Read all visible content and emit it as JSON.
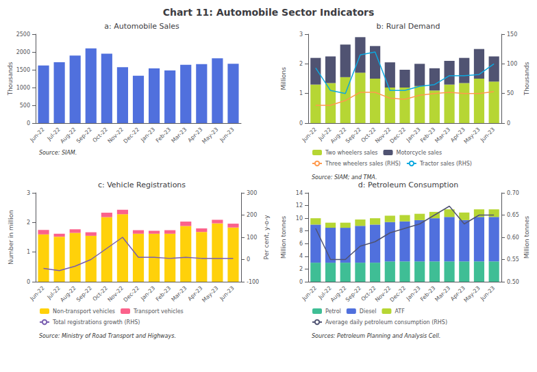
{
  "title": "Chart 11: Automobile Sector Indicators",
  "chart_data": [
    {
      "type": "bar",
      "title": "a: Automobile Sales",
      "categories": [
        "Jun-22",
        "Jul-22",
        "Aug-22",
        "Sep-22",
        "Oct-22",
        "Nov-22",
        "Dec-22",
        "Jan-23",
        "Feb-23",
        "Mar-23",
        "Apr-23",
        "May-23",
        "Jun-23"
      ],
      "ylabel": "Thousands",
      "values": [
        1620,
        1710,
        1900,
        2100,
        1950,
        1570,
        1330,
        1540,
        1480,
        1640,
        1660,
        1820,
        1670
      ],
      "ylim": [
        0,
        2500
      ],
      "yticks": [
        0,
        500,
        1000,
        1500,
        2000,
        2500
      ],
      "grid": false,
      "annotations": [
        "Source: SIAM."
      ]
    },
    {
      "type": "bar",
      "title": "b: Rural Demand",
      "categories": [
        "Jun-22",
        "Jul-22",
        "Aug-22",
        "Sep-22",
        "Oct-22",
        "Nov-22",
        "Dec-22",
        "Jan-23",
        "Feb-23",
        "Mar-23",
        "Apr-23",
        "May-23",
        "Jun-23"
      ],
      "ylabel": "Millions",
      "y2label": "Thousands",
      "stacked": true,
      "series": [
        {
          "name": "Two wheelers sales",
          "values": [
            1.3,
            1.35,
            1.55,
            1.7,
            1.5,
            1.2,
            1.2,
            1.25,
            1.1,
            1.3,
            1.35,
            1.5,
            1.4
          ]
        },
        {
          "name": "Motorcycle sales",
          "values": [
            0.9,
            0.9,
            1.1,
            1.2,
            1.1,
            0.85,
            0.6,
            0.75,
            0.75,
            0.8,
            0.85,
            1.0,
            0.85
          ]
        },
        {
          "name": "Three wheelers sales (RHS)",
          "type": "line",
          "axis": "y2",
          "values": [
            30,
            30,
            38,
            52,
            52,
            42,
            40,
            47,
            50,
            52,
            50,
            50,
            53
          ]
        },
        {
          "name": "Tractor sales (RHS)",
          "type": "line",
          "axis": "y2",
          "values": [
            93,
            55,
            50,
            115,
            120,
            55,
            55,
            62,
            65,
            80,
            80,
            82,
            100
          ]
        }
      ],
      "ylim": [
        0.0,
        3.0
      ],
      "yticks": [
        0,
        1,
        2,
        3
      ],
      "y2lim": [
        0,
        150
      ],
      "y2ticks": [
        0,
        50,
        100,
        150
      ],
      "grid": false,
      "legend": "bottom",
      "annotations": [
        "Source: SIAM; and TMA."
      ]
    },
    {
      "type": "bar",
      "title": "c: Vehicle Registrations",
      "categories": [
        "Jun-22",
        "Jul-22",
        "Aug-22",
        "Sep-22",
        "Oct-22",
        "Nov-22",
        "Dec-22",
        "Jan-23",
        "Feb-23",
        "Mar-23",
        "Apr-23",
        "May-23",
        "Jun-23"
      ],
      "ylabel": "Number in million",
      "y2label": "Per cent, y-o-y",
      "stacked": true,
      "series": [
        {
          "name": "Non-transport vehicles",
          "values": [
            1.6,
            1.52,
            1.65,
            1.55,
            2.18,
            2.28,
            1.62,
            1.62,
            1.62,
            1.88,
            1.68,
            1.97,
            1.83
          ]
        },
        {
          "name": "Transport vehicles",
          "values": [
            0.15,
            0.1,
            0.12,
            0.12,
            0.15,
            0.15,
            0.12,
            0.1,
            0.12,
            0.15,
            0.12,
            0.12,
            0.13
          ]
        },
        {
          "name": "Total registrations growth (RHS)",
          "type": "line",
          "axis": "y2",
          "values": [
            -40,
            -50,
            -30,
            0,
            50,
            100,
            10,
            10,
            5,
            10,
            5,
            5,
            5
          ]
        }
      ],
      "ylim": [
        0.0,
        3.0
      ],
      "yticks": [
        0,
        1,
        2,
        3
      ],
      "y2lim": [
        -100,
        300
      ],
      "y2ticks": [
        -100,
        0,
        100,
        200,
        300
      ],
      "grid": false,
      "legend": "bottom",
      "annotations": [
        "Source: Ministry of Road Transport and Highways."
      ]
    },
    {
      "type": "bar",
      "title": "d: Petroleum Consumption",
      "categories": [
        "Jun-22",
        "Jul-22",
        "Aug-22",
        "Sep-22",
        "Oct-22",
        "Nov-22",
        "Dec-22",
        "Jan-23",
        "Feb-23",
        "Mar-23",
        "Apr-23",
        "May-23",
        "Jun-23"
      ],
      "ylabel": "Million tonnes",
      "y2label": "Million tonnes",
      "stacked": true,
      "series": [
        {
          "name": "Petrol",
          "values": [
            3.0,
            3.0,
            3.0,
            3.0,
            3.0,
            3.2,
            3.2,
            3.2,
            3.2,
            3.2,
            3.2,
            3.2,
            3.2
          ]
        },
        {
          "name": "Diesel",
          "values": [
            6.0,
            5.5,
            5.5,
            5.8,
            6.0,
            6.2,
            6.3,
            6.5,
            6.8,
            7.0,
            6.5,
            7.0,
            7.0
          ]
        },
        {
          "name": "ATF",
          "values": [
            1.0,
            0.8,
            0.8,
            1.0,
            1.0,
            1.0,
            1.0,
            1.0,
            1.0,
            1.2,
            1.2,
            1.2,
            1.2
          ]
        },
        {
          "name": "Average daily petroleum consumption (RHS)",
          "type": "line",
          "axis": "y2",
          "values": [
            0.62,
            0.55,
            0.55,
            0.58,
            0.59,
            0.61,
            0.62,
            0.63,
            0.65,
            0.67,
            0.63,
            0.65,
            0.65
          ]
        }
      ],
      "ylim": [
        0.0,
        14.0
      ],
      "yticks": [
        0,
        2,
        4,
        6,
        8,
        10,
        12,
        14
      ],
      "y2lim": [
        0.5,
        0.7
      ],
      "y2ticks": [
        {
          "value": 0.5,
          "label": "0.50"
        },
        0.55,
        {
          "value": 0.6,
          "label": "0.60"
        },
        0.65,
        {
          "value": 0.7,
          "label": "0.70"
        }
      ],
      "grid": false,
      "legend": "bottom",
      "annotations": [
        "Sources: Petroleum Planning and Analysis Cell."
      ]
    }
  ]
}
